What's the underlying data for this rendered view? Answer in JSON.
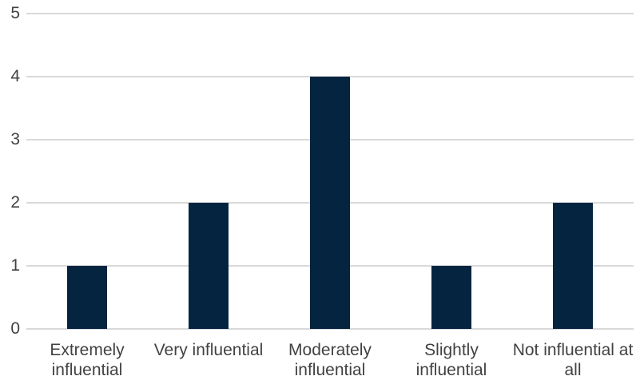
{
  "chart_data": {
    "type": "bar",
    "title": "",
    "xlabel": "",
    "ylabel": "",
    "categories": [
      "Extremely influential",
      "Very influential",
      "Moderately influential",
      "Slightly influential",
      "Not influential at all"
    ],
    "category_label_lines": [
      [
        "Extremely",
        "influential"
      ],
      [
        "Very influential"
      ],
      [
        "Moderately",
        "influential"
      ],
      [
        "Slightly",
        "influential"
      ],
      [
        "Not influential at",
        "all"
      ]
    ],
    "values": [
      1,
      2,
      4,
      1,
      2
    ],
    "yticks": [
      0,
      1,
      2,
      3,
      4,
      5
    ],
    "ylim": [
      0,
      5
    ],
    "grid": "horizontal",
    "legend_position": "none",
    "bar_color": "#052440",
    "gridline_color": "#d9d9d9",
    "axis_label_color": "#424242",
    "background_color": "#ffffff"
  }
}
